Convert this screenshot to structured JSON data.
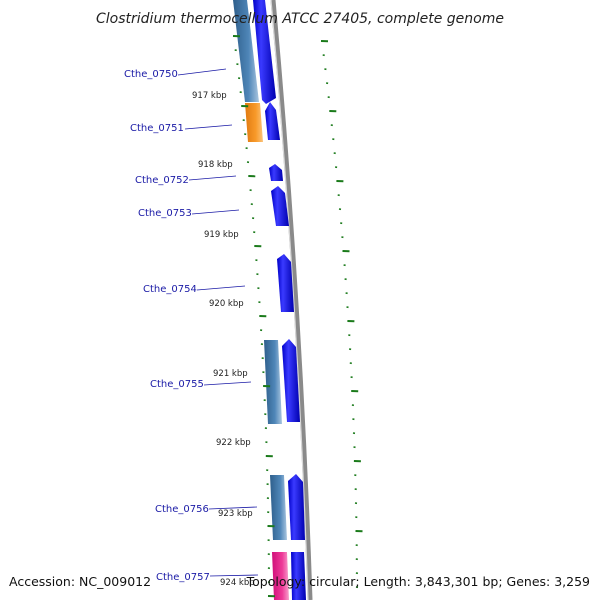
{
  "title": "Clostridium thermocellum ATCC 27405, complete genome",
  "footer": {
    "accession": "Accession: NC_009012",
    "summary": "Topology: circular; Length: 3,843,301 bp; Genes: 3,259"
  },
  "colors": {
    "cds_forward": "#0000ee",
    "cds_reverse": "#3a74a8",
    "highlight_orange": "#f7941d",
    "highlight_pink": "#e8208a",
    "tick": "#1a7a1a",
    "label": "#1a1aa6",
    "backbone": "#888888"
  },
  "genes": [
    {
      "label": "Cthe_0750"
    },
    {
      "label": "Cthe_0751"
    },
    {
      "label": "Cthe_0752"
    },
    {
      "label": "Cthe_0753"
    },
    {
      "label": "Cthe_0754"
    },
    {
      "label": "Cthe_0755"
    },
    {
      "label": "Cthe_0756"
    },
    {
      "label": "Cthe_0757"
    }
  ],
  "kbp_ticks": [
    "917 kbp",
    "918 kbp",
    "919 kbp",
    "920 kbp",
    "921 kbp",
    "922 kbp",
    "923 kbp",
    "924 kbp"
  ]
}
